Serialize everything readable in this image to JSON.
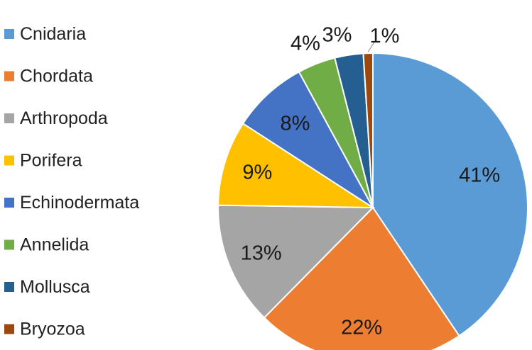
{
  "chart_data": {
    "type": "pie",
    "title": "",
    "legend_position": "left",
    "start_angle_deg": 0,
    "direction": "clockwise",
    "slices": [
      {
        "label": "Cnidaria",
        "value": 41,
        "display": "41%",
        "color": "#5B9BD5"
      },
      {
        "label": "Chordata",
        "value": 22,
        "display": "22%",
        "color": "#ED7D31"
      },
      {
        "label": "Arthropoda",
        "value": 13,
        "display": "13%",
        "color": "#A5A5A5"
      },
      {
        "label": "Porifera",
        "value": 9,
        "display": "9%",
        "color": "#FFC000"
      },
      {
        "label": "Echinodermata",
        "value": 8,
        "display": "8%",
        "color": "#4472C4"
      },
      {
        "label": "Annelida",
        "value": 4,
        "display": "4%",
        "color": "#70AD47"
      },
      {
        "label": "Mollusca",
        "value": 3,
        "display": "3%",
        "color": "#255E91"
      },
      {
        "label": "Bryozoa",
        "value": 1,
        "display": "1%",
        "color": "#9E480E"
      }
    ]
  }
}
